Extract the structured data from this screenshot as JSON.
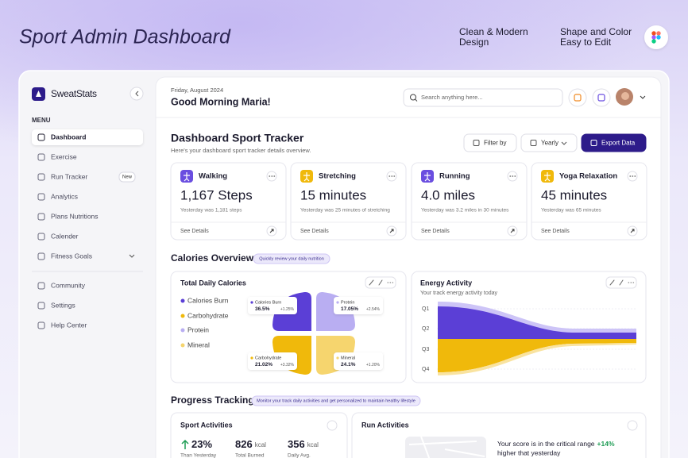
{
  "header": {
    "title": "Sport Admin Dashboard",
    "features": [
      {
        "lines": [
          "Clean & Modern",
          "Design"
        ]
      },
      {
        "lines": [
          "Shape and Color",
          "Easy to Edit"
        ]
      }
    ]
  },
  "sidebar": {
    "brand": "SweatStats",
    "menu_label": "MENU",
    "menu": [
      {
        "label": "Dashboard",
        "active": true
      },
      {
        "label": "Exercise"
      },
      {
        "label": "Run Tracker",
        "badge": "New"
      },
      {
        "label": "Analytics"
      },
      {
        "label": "Plans Nutritions"
      },
      {
        "label": "Calender"
      },
      {
        "label": "Fitness Goals",
        "expandable": true
      }
    ],
    "footer_menu": [
      {
        "label": "Community"
      },
      {
        "label": "Settings"
      },
      {
        "label": "Help Center"
      }
    ]
  },
  "topbar": {
    "date": "Friday, August 2024",
    "greeting": "Good Morning Maria!",
    "search_placeholder": "Search anything here..."
  },
  "tracker": {
    "title": "Dashboard Sport Tracker",
    "subtitle": "Here's your dashboard sport tracker details overview.",
    "filter": "Filter by",
    "period": "Yearly",
    "export": "Export Data",
    "cards": [
      {
        "name": "Walking",
        "value": "1,167 Steps",
        "comparison": "Yesterday was 1,181 steps",
        "link": "See Details",
        "color": "#6a4ee0"
      },
      {
        "name": "Stretching",
        "value": "15 minutes",
        "comparison": "Yesterday was 25 minutes of stretching",
        "link": "See Details",
        "color": "#f0b90b"
      },
      {
        "name": "Running",
        "value": "4.0 miles",
        "comparison": "Yesterday was 3.2 miles in 30 minutes",
        "link": "See Details",
        "color": "#6a4ee0"
      },
      {
        "name": "Yoga Relaxation",
        "value": "45 minutes",
        "comparison": "Yesterday was 65 minutes",
        "link": "See Details",
        "color": "#f0b90b"
      }
    ]
  },
  "calories": {
    "title": "Calories Overview",
    "badge": "Quickly review your daily nutrition",
    "card_title": "Total Daily Calories",
    "items": [
      {
        "name": "Calories Burn",
        "color": "#5b3fd6",
        "share": "36.5%",
        "change": "+1.25%"
      },
      {
        "name": "Carbohydrate",
        "color": "#f0b90b",
        "share": "21.02%",
        "change": "+3.32%"
      },
      {
        "name": "Protein",
        "color": "#b9aef2",
        "share": "17.05%",
        "change": "+2.54%"
      },
      {
        "name": "Mineral",
        "color": "#f6d56e",
        "share": "24.1%",
        "change": "+1.20%"
      }
    ]
  },
  "energy": {
    "title": "Energy Activity",
    "subtitle": "Your track energy activity today",
    "quarters": [
      "Q1",
      "Q2",
      "Q3",
      "Q4"
    ]
  },
  "progress": {
    "title": "Progress Tracking",
    "badge": "Monitor your track daily activities and get personalized to maintain healthy lifestyle",
    "sport": {
      "title": "Sport Activities",
      "stats": [
        {
          "value": "23%",
          "caption": "Than Yesterday"
        },
        {
          "value": "826",
          "unit": "kcal",
          "caption": "Total Burned"
        },
        {
          "value": "356",
          "unit": "kcal",
          "caption": "Daily Avg."
        }
      ]
    },
    "run": {
      "title": "Run Activities",
      "message": "Your score is in the critical range",
      "highlight": "+14%",
      "message2": "higher that yesterday"
    }
  }
}
